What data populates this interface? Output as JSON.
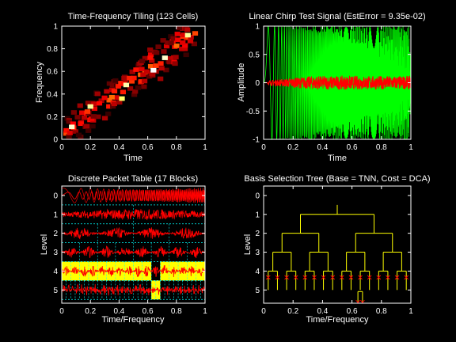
{
  "chart_data": [
    {
      "type": "heatmap",
      "title": "Time-Frequency Tiling (123 Cells)",
      "xlabel": "Time",
      "ylabel": "Frequency",
      "xlim": [
        0,
        1
      ],
      "ylim": [
        0,
        1
      ],
      "xticks": [
        "0",
        "0.2",
        "0.4",
        "0.6",
        "0.8",
        "1"
      ],
      "yticks": [
        "0",
        "0.2",
        "0.4",
        "0.6",
        "0.8",
        "1"
      ],
      "colormap": "hot",
      "ridge": {
        "t_start": 0.02,
        "f_start": 0.05,
        "t_end": 0.93,
        "f_end": 0.95,
        "cell_t": 0.04,
        "cell_f": 0.04
      },
      "bright_cells": [
        {
          "t": 0.07,
          "f": 0.11,
          "level": 0.95
        },
        {
          "t": 0.2,
          "f": 0.29,
          "level": 0.9
        },
        {
          "t": 0.45,
          "f": 0.48,
          "level": 0.92
        },
        {
          "t": 0.64,
          "f": 0.61,
          "level": 1.0
        },
        {
          "t": 0.72,
          "f": 0.72,
          "level": 0.95
        },
        {
          "t": 0.88,
          "f": 0.92,
          "level": 0.9
        },
        {
          "t": 0.42,
          "f": 0.36,
          "level": 0.85
        }
      ]
    },
    {
      "type": "line",
      "title": "Linear Chirp Test Signal (EstError = 9.35e-02)",
      "xlabel": "Time",
      "ylabel": "Amplitude",
      "xlim": [
        0,
        1
      ],
      "ylim": [
        -1,
        1
      ],
      "xticks": [
        "0",
        "0.2",
        "0.4",
        "0.6",
        "0.8",
        "1"
      ],
      "yticks": [
        "-1",
        "-0.5",
        "0",
        "0.5",
        "1"
      ],
      "series": [
        {
          "color": "#00ff00",
          "amplitude": 1.0,
          "f0": 2,
          "f1": 400
        },
        {
          "color": "#ff0000",
          "amplitude": 0.12
        }
      ]
    },
    {
      "type": "line",
      "title": "Discrete Packet Table (17 Blocks)",
      "xlabel": "Time/Frequency",
      "ylabel": "Level",
      "xlim": [
        0,
        1
      ],
      "ylim": [
        -0.5,
        5.7
      ],
      "xticks": [
        "0",
        "0.2",
        "0.4",
        "0.6",
        "0.8",
        "1"
      ],
      "yticks": [
        "0",
        "1",
        "2",
        "3",
        "4",
        "5"
      ],
      "levels": [
        0,
        1,
        2,
        3,
        4,
        5
      ],
      "highlight_color": "#ffff00",
      "trace_color": "#ff0000",
      "grid_color": "#00ffff"
    },
    {
      "type": "tree",
      "title": "Basis Selection Tree (Base = TNN, Cost = DCA)",
      "xlabel": "Time/Frequency",
      "ylabel": "Level",
      "xlim": [
        0,
        1
      ],
      "ylim": [
        -0.5,
        5.7
      ],
      "xticks": [
        "0",
        "0.2",
        "0.4",
        "0.6",
        "0.8",
        "1"
      ],
      "yticks": [
        "0",
        "1",
        "2",
        "3",
        "4",
        "5"
      ],
      "tree_color": "#ffff00",
      "marker_color": "#ff0000",
      "leaf_markers_level": 4,
      "deep_split": {
        "level": 4,
        "x": 0.656
      }
    }
  ]
}
